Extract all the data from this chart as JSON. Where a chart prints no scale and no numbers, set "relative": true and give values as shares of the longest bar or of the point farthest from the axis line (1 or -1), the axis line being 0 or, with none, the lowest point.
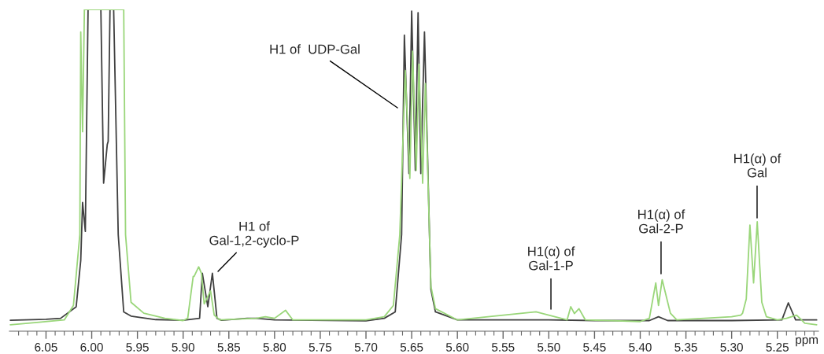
{
  "chart_data": {
    "type": "line",
    "relative": true,
    "xlabel": "ppm",
    "xlim": [
      6.09,
      5.205
    ],
    "xticks": [
      {
        "value": 6.08,
        "label": null
      },
      {
        "value": 6.07,
        "label": null
      },
      {
        "value": 6.06,
        "label": null
      },
      6.05,
      {
        "value": 6.04,
        "label": null
      },
      {
        "value": 6.03,
        "label": null
      },
      {
        "value": 6.02,
        "label": null
      },
      {
        "value": 6.01,
        "label": null
      },
      {
        "value": 6.0,
        "label": "6.00"
      },
      {
        "value": 5.99,
        "label": null
      },
      {
        "value": 5.98,
        "label": null
      },
      {
        "value": 5.97,
        "label": null
      },
      {
        "value": 5.96,
        "label": null
      },
      5.95,
      {
        "value": 5.94,
        "label": null
      },
      {
        "value": 5.93,
        "label": null
      },
      {
        "value": 5.92,
        "label": null
      },
      {
        "value": 5.91,
        "label": null
      },
      {
        "value": 5.9,
        "label": "5.90"
      },
      {
        "value": 5.89,
        "label": null
      },
      {
        "value": 5.88,
        "label": null
      },
      {
        "value": 5.87,
        "label": null
      },
      {
        "value": 5.86,
        "label": null
      },
      5.85,
      {
        "value": 5.84,
        "label": null
      },
      {
        "value": 5.83,
        "label": null
      },
      {
        "value": 5.82,
        "label": null
      },
      {
        "value": 5.81,
        "label": null
      },
      {
        "value": 5.8,
        "label": "5.80"
      },
      {
        "value": 5.79,
        "label": null
      },
      {
        "value": 5.78,
        "label": null
      },
      {
        "value": 5.77,
        "label": null
      },
      {
        "value": 5.76,
        "label": null
      },
      5.75,
      {
        "value": 5.74,
        "label": null
      },
      {
        "value": 5.73,
        "label": null
      },
      {
        "value": 5.72,
        "label": null
      },
      {
        "value": 5.71,
        "label": null
      },
      {
        "value": 5.7,
        "label": "5.70"
      },
      {
        "value": 5.69,
        "label": null
      },
      {
        "value": 5.68,
        "label": null
      },
      {
        "value": 5.67,
        "label": null
      },
      {
        "value": 5.66,
        "label": null
      },
      5.65,
      {
        "value": 5.64,
        "label": null
      },
      {
        "value": 5.63,
        "label": null
      },
      {
        "value": 5.62,
        "label": null
      },
      {
        "value": 5.61,
        "label": null
      },
      {
        "value": 5.6,
        "label": "5.60"
      },
      {
        "value": 5.59,
        "label": null
      },
      {
        "value": 5.58,
        "label": null
      },
      {
        "value": 5.57,
        "label": null
      },
      {
        "value": 5.56,
        "label": null
      },
      5.55,
      {
        "value": 5.54,
        "label": null
      },
      {
        "value": 5.53,
        "label": null
      },
      {
        "value": 5.52,
        "label": null
      },
      {
        "value": 5.51,
        "label": null
      },
      {
        "value": 5.5,
        "label": "5.50"
      },
      {
        "value": 5.49,
        "label": null
      },
      {
        "value": 5.48,
        "label": null
      },
      {
        "value": 5.47,
        "label": null
      },
      {
        "value": 5.46,
        "label": null
      },
      5.45,
      {
        "value": 5.44,
        "label": null
      },
      {
        "value": 5.43,
        "label": null
      },
      {
        "value": 5.42,
        "label": null
      },
      {
        "value": 5.41,
        "label": null
      },
      {
        "value": 5.4,
        "label": "5.40"
      },
      {
        "value": 5.39,
        "label": null
      },
      {
        "value": 5.38,
        "label": null
      },
      {
        "value": 5.37,
        "label": null
      },
      {
        "value": 5.36,
        "label": null
      },
      5.35,
      {
        "value": 5.34,
        "label": null
      },
      {
        "value": 5.33,
        "label": null
      },
      {
        "value": 5.32,
        "label": null
      },
      {
        "value": 5.31,
        "label": null
      },
      {
        "value": 5.3,
        "label": "5.30"
      },
      {
        "value": 5.29,
        "label": null
      },
      {
        "value": 5.28,
        "label": null
      },
      {
        "value": 5.27,
        "label": null
      },
      {
        "value": 5.26,
        "label": null
      },
      5.25,
      {
        "value": 5.24,
        "label": null
      },
      {
        "value": 5.23,
        "label": null
      },
      {
        "value": 5.22,
        "label": null
      },
      {
        "value": 5.21,
        "label": null
      }
    ],
    "series": [
      {
        "color": "#404040",
        "x": [
          6.089,
          6.05,
          6.034,
          6.017,
          6.012,
          6.01,
          6.007,
          6.004,
          5.997,
          5.99,
          5.987,
          5.983,
          5.982,
          5.98,
          5.976,
          5.971,
          5.965,
          5.957,
          5.93,
          5.9,
          5.882,
          5.879,
          5.873,
          5.868,
          5.863,
          5.858,
          5.83,
          5.82,
          5.8,
          5.7,
          5.68,
          5.668,
          5.661,
          5.658,
          5.653,
          5.65,
          5.646,
          5.643,
          5.64,
          5.636,
          5.629,
          5.624,
          5.6,
          5.5,
          5.45,
          5.39,
          5.38,
          5.37,
          5.3,
          5.245,
          5.238,
          5.23,
          5.207
        ],
        "values": [
          0.034,
          0.037,
          0.04,
          0.076,
          0.22,
          0.4,
          0.31,
          1.0,
          1.0,
          1.0,
          0.46,
          0.58,
          0.59,
          1.0,
          1.0,
          0.3,
          0.06,
          0.047,
          0.036,
          0.034,
          0.04,
          0.18,
          0.076,
          0.18,
          0.04,
          0.034,
          0.04,
          0.04,
          0.035,
          0.032,
          0.04,
          0.06,
          0.3,
          0.92,
          0.49,
          0.995,
          0.5,
          0.99,
          0.49,
          0.93,
          0.13,
          0.06,
          0.035,
          0.035,
          0.033,
          0.033,
          0.045,
          0.033,
          0.033,
          0.035,
          0.088,
          0.035,
          0.035
        ]
      },
      {
        "color": "#9ad67a",
        "x": [
          6.089,
          6.06,
          6.03,
          6.02,
          6.013,
          6.012,
          6.01,
          6.008,
          5.99,
          5.965,
          5.963,
          5.957,
          5.943,
          5.92,
          5.9,
          5.895,
          5.889,
          5.888,
          5.883,
          5.88,
          5.877,
          5.87,
          5.866,
          5.86,
          5.82,
          5.81,
          5.8,
          5.788,
          5.78,
          5.7,
          5.68,
          5.67,
          5.663,
          5.657,
          5.652,
          5.649,
          5.645,
          5.642,
          5.638,
          5.635,
          5.629,
          5.624,
          5.6,
          5.514,
          5.5,
          5.48,
          5.476,
          5.472,
          5.467,
          5.46,
          5.4,
          5.39,
          5.383,
          5.38,
          5.376,
          5.367,
          5.36,
          5.3,
          5.29,
          5.288,
          5.284,
          5.28,
          5.276,
          5.272,
          5.267,
          5.262,
          5.25,
          5.24,
          5.229,
          5.22,
          5.207
        ],
        "values": [
          0.02,
          0.027,
          0.035,
          0.08,
          0.3,
          0.93,
          0.62,
          1.0,
          1.0,
          1.0,
          0.3,
          0.09,
          0.056,
          0.04,
          0.033,
          0.04,
          0.17,
          0.17,
          0.2,
          0.18,
          0.085,
          0.125,
          0.05,
          0.035,
          0.04,
          0.045,
          0.04,
          0.065,
          0.035,
          0.035,
          0.045,
          0.08,
          0.3,
          0.81,
          0.475,
          0.87,
          0.5,
          0.83,
          0.46,
          0.77,
          0.14,
          0.07,
          0.035,
          0.06,
          0.05,
          0.035,
          0.076,
          0.055,
          0.07,
          0.035,
          0.03,
          0.04,
          0.15,
          0.08,
          0.16,
          0.056,
          0.035,
          0.045,
          0.05,
          0.056,
          0.1,
          0.33,
          0.15,
          0.34,
          0.09,
          0.045,
          0.035,
          0.04,
          0.05,
          0.025,
          0.02
        ]
      }
    ],
    "annotations": [
      "H1 of\nGal-1,2-cyclo-P",
      "H1 of  UDP-Gal",
      "H1(α) of\nGal-1-P",
      "H1(α) of\nGal-2-P",
      "H1(α) of\nGal"
    ]
  }
}
